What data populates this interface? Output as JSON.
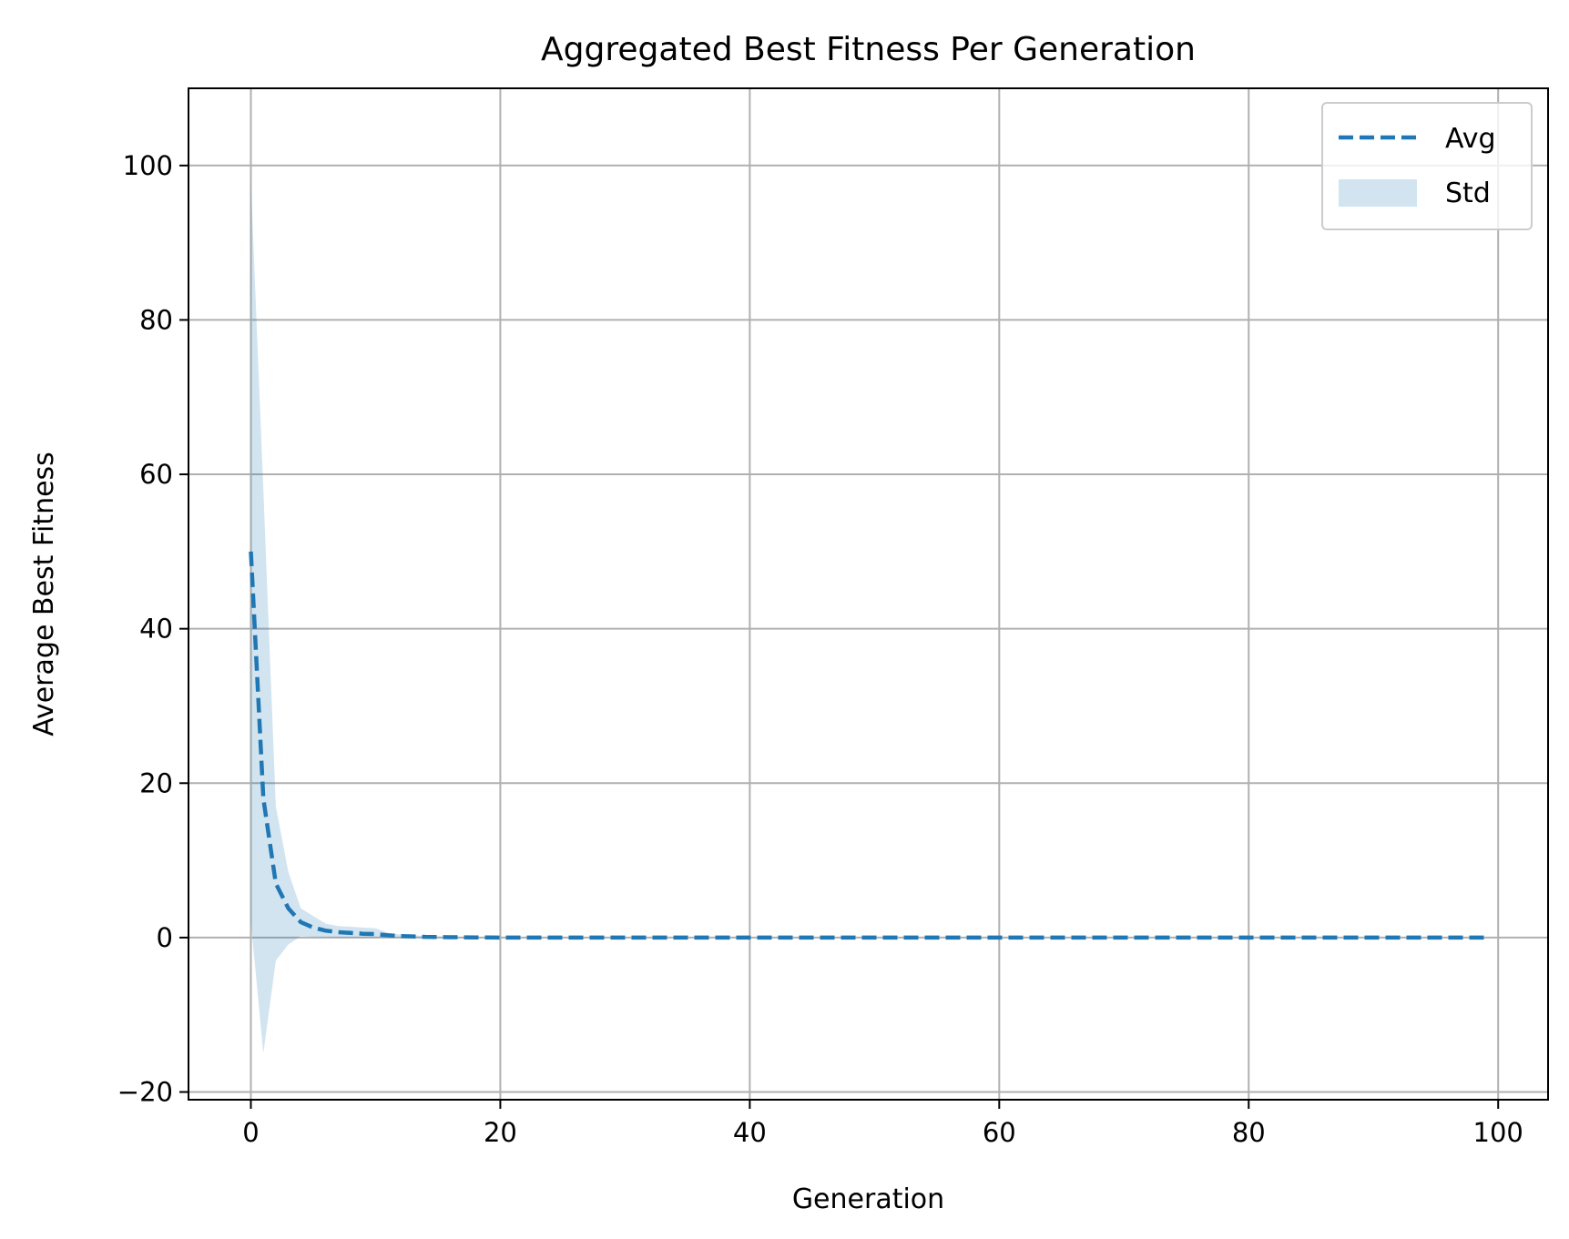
{
  "chart_data": {
    "type": "line",
    "title": "Aggregated Best Fitness Per Generation",
    "xlabel": "Generation",
    "ylabel": "Average Best Fitness",
    "xlim": [
      -5,
      104
    ],
    "ylim": [
      -21,
      110
    ],
    "xticks": [
      0,
      20,
      40,
      60,
      80,
      100
    ],
    "yticks": [
      -20,
      0,
      20,
      40,
      60,
      80,
      100
    ],
    "xtick_labels": [
      "0",
      "20",
      "40",
      "60",
      "80",
      "100"
    ],
    "ytick_labels": [
      "−20",
      "0",
      "20",
      "40",
      "60",
      "80",
      "100"
    ],
    "grid": true,
    "legend_position": "top-right",
    "series": [
      {
        "name": "Avg",
        "style": "dashed",
        "color": "#1f77b4",
        "x": [
          0,
          1,
          2,
          3,
          4,
          5,
          6,
          7,
          8,
          9,
          10,
          11,
          12,
          13,
          14,
          15,
          16,
          17,
          18,
          19,
          20,
          25,
          30,
          35,
          40,
          45,
          50,
          55,
          60,
          65,
          70,
          75,
          80,
          85,
          90,
          95,
          99
        ],
        "y": [
          50,
          18,
          7,
          3.8,
          2,
          1.3,
          0.9,
          0.7,
          0.6,
          0.5,
          0.45,
          0.3,
          0.2,
          0.15,
          0.1,
          0.08,
          0.05,
          0.03,
          0.02,
          0.01,
          0,
          0,
          0,
          0,
          0,
          0,
          0,
          0,
          0,
          0,
          0,
          0,
          0,
          0,
          0,
          0,
          0
        ]
      }
    ],
    "band": {
      "name": "Std",
      "color": "#1f77b4",
      "opacity": 0.2,
      "x": [
        0,
        1,
        2,
        3,
        4,
        5,
        6,
        7,
        8,
        9,
        10,
        11,
        12,
        13,
        14,
        15,
        16,
        17,
        18,
        19,
        20,
        25,
        30,
        35,
        40,
        45,
        50,
        55,
        60,
        65,
        70,
        75,
        80,
        85,
        90,
        95,
        99
      ],
      "upper": [
        98,
        58,
        17,
        8.5,
        3.8,
        2.8,
        1.8,
        1.5,
        1.4,
        1.3,
        1.2,
        0.6,
        0.4,
        0.3,
        0.2,
        0.15,
        0.1,
        0.06,
        0.04,
        0.02,
        0,
        0,
        0,
        0,
        0,
        0,
        0,
        0,
        0,
        0,
        0,
        0,
        0,
        0,
        0,
        0,
        0
      ],
      "lower": [
        2,
        -15,
        -3,
        -0.9,
        0.2,
        0.1,
        0.05,
        0,
        0,
        0,
        0,
        0,
        0,
        0,
        0,
        0,
        0,
        0,
        0,
        0,
        0,
        0,
        0,
        0,
        0,
        0,
        0,
        0,
        0,
        0,
        0,
        0,
        0,
        0,
        0,
        0,
        0
      ]
    },
    "legend": [
      {
        "label": "Avg",
        "kind": "dashed-line"
      },
      {
        "label": "Std",
        "kind": "band"
      }
    ]
  }
}
